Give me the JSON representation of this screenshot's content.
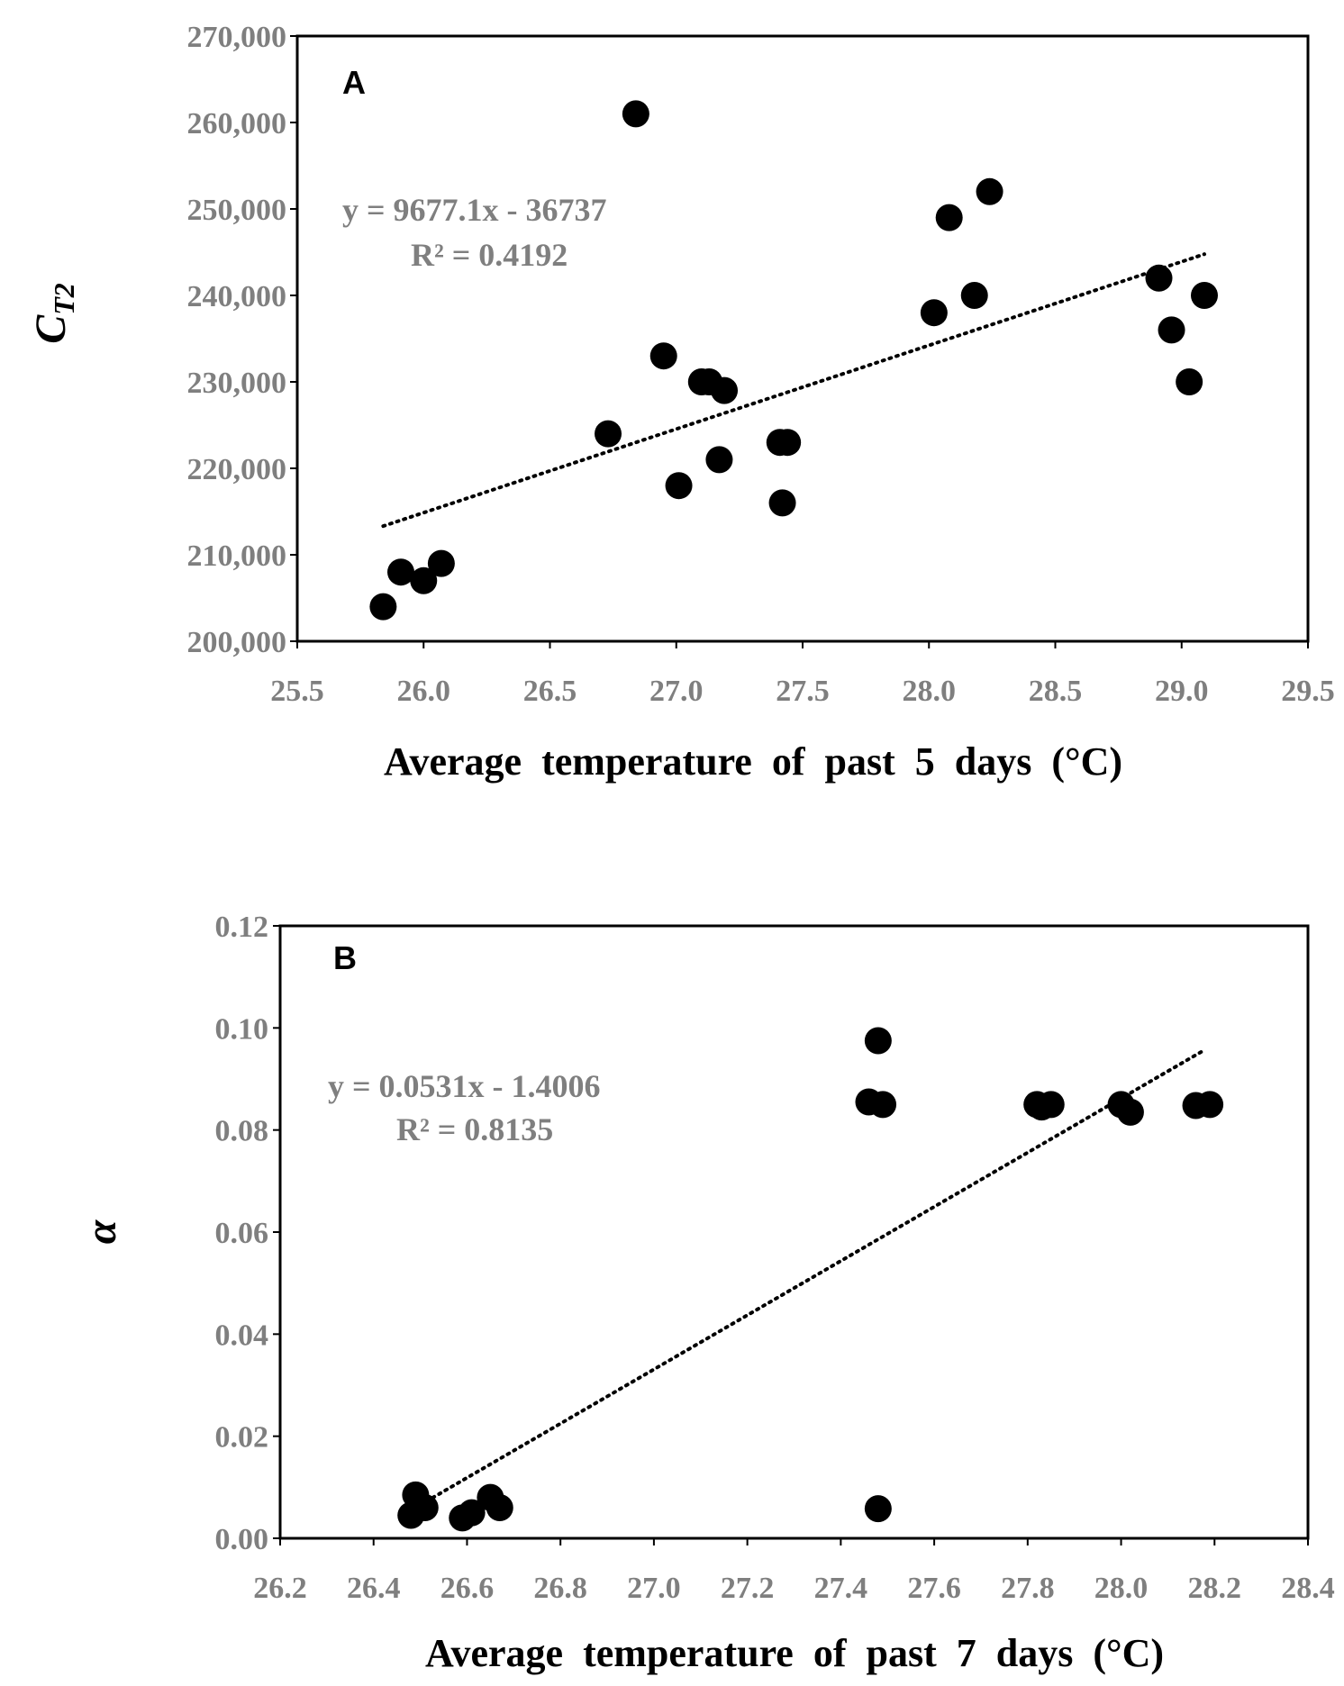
{
  "chart_data": [
    {
      "type": "scatter",
      "panel": "A",
      "xlabel": "Average  temperature  of  past  5  days  (°C)",
      "ylabel_main": "C",
      "ylabel_sub": "T2",
      "xlim": [
        25.5,
        29.5
      ],
      "ylim": [
        200000,
        270000
      ],
      "xticks": [
        25.5,
        26.0,
        26.5,
        27.0,
        27.5,
        28.0,
        28.5,
        29.0,
        29.5
      ],
      "xtick_labels": [
        "25.5",
        "26.0",
        "26.5",
        "27.0",
        "27.5",
        "28.0",
        "28.5",
        "29.0",
        "29.5"
      ],
      "yticks": [
        200000,
        210000,
        220000,
        230000,
        240000,
        250000,
        260000,
        270000
      ],
      "ytick_labels": [
        "200,000",
        "210,000",
        "220,000",
        "230,000",
        "240,000",
        "250,000",
        "260,000",
        "270,000"
      ],
      "equation": "y = 9677.1x - 36737",
      "r_squared": "R² = 0.4192",
      "trendline": {
        "slope": 9677.1,
        "intercept": -36737,
        "x_start": 25.84,
        "x_end": 29.09
      },
      "points": [
        {
          "x": 25.84,
          "y": 204000
        },
        {
          "x": 25.91,
          "y": 208000
        },
        {
          "x": 26.0,
          "y": 207000
        },
        {
          "x": 26.07,
          "y": 209000
        },
        {
          "x": 26.73,
          "y": 224000
        },
        {
          "x": 26.84,
          "y": 261000
        },
        {
          "x": 26.95,
          "y": 233000
        },
        {
          "x": 27.01,
          "y": 218000
        },
        {
          "x": 27.1,
          "y": 230000
        },
        {
          "x": 27.13,
          "y": 230000
        },
        {
          "x": 27.17,
          "y": 221000
        },
        {
          "x": 27.19,
          "y": 229000
        },
        {
          "x": 27.41,
          "y": 223000
        },
        {
          "x": 27.44,
          "y": 223000
        },
        {
          "x": 27.42,
          "y": 216000
        },
        {
          "x": 28.02,
          "y": 238000
        },
        {
          "x": 28.08,
          "y": 249000
        },
        {
          "x": 28.18,
          "y": 240000
        },
        {
          "x": 28.24,
          "y": 252000
        },
        {
          "x": 28.91,
          "y": 242000
        },
        {
          "x": 28.96,
          "y": 236000
        },
        {
          "x": 29.03,
          "y": 230000
        },
        {
          "x": 29.09,
          "y": 240000
        }
      ]
    },
    {
      "type": "scatter",
      "panel": "B",
      "xlabel": "Average  temperature  of  past  7  days  (°C)",
      "ylabel": "α",
      "xlim": [
        26.2,
        28.4
      ],
      "ylim": [
        0,
        0.12
      ],
      "xticks": [
        26.2,
        26.4,
        26.6,
        26.8,
        27.0,
        27.2,
        27.4,
        27.6,
        27.8,
        28.0,
        28.2,
        28.4
      ],
      "xtick_labels": [
        "26.2",
        "26.4",
        "26.6",
        "26.8",
        "27.0",
        "27.2",
        "27.4",
        "27.6",
        "27.8",
        "28.0",
        "28.2",
        "28.4"
      ],
      "yticks": [
        0,
        0.02,
        0.04,
        0.06,
        0.08,
        0.1,
        0.12
      ],
      "ytick_labels": [
        "0.00",
        "0.02",
        "0.04",
        "0.06",
        "0.08",
        "0.10",
        "0.12"
      ],
      "equation": "y = 0.0531x - 1.4006",
      "r_squared": "R² = 0.8135",
      "trendline": {
        "slope": 0.0531,
        "intercept": -1.4006,
        "x_start": 26.5,
        "x_end": 28.18
      },
      "points": [
        {
          "x": 26.49,
          "y": 0.0085
        },
        {
          "x": 26.48,
          "y": 0.0045
        },
        {
          "x": 26.51,
          "y": 0.006
        },
        {
          "x": 26.59,
          "y": 0.004
        },
        {
          "x": 26.61,
          "y": 0.005
        },
        {
          "x": 26.65,
          "y": 0.008
        },
        {
          "x": 26.67,
          "y": 0.006
        },
        {
          "x": 27.46,
          "y": 0.0855
        },
        {
          "x": 27.48,
          "y": 0.0975
        },
        {
          "x": 27.49,
          "y": 0.085
        },
        {
          "x": 27.48,
          "y": 0.0058
        },
        {
          "x": 27.82,
          "y": 0.085
        },
        {
          "x": 27.83,
          "y": 0.0845
        },
        {
          "x": 27.85,
          "y": 0.085
        },
        {
          "x": 28.0,
          "y": 0.085
        },
        {
          "x": 28.02,
          "y": 0.0835
        },
        {
          "x": 28.16,
          "y": 0.0848
        },
        {
          "x": 28.19,
          "y": 0.085
        }
      ]
    }
  ]
}
